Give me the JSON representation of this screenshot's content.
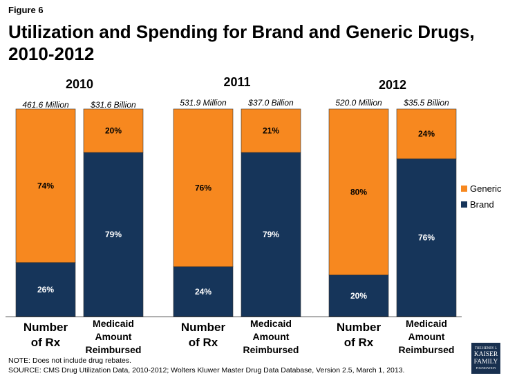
{
  "figure_label": "Figure 6",
  "title": "Utilization and Spending for Brand and Generic Drugs, 2010-2012",
  "colors": {
    "generic": "#f7881f",
    "brand": "#16355a",
    "axis": "#444444"
  },
  "legend": [
    {
      "label": "Generic",
      "color": "#f7881f"
    },
    {
      "label": "Brand",
      "color": "#16355a"
    }
  ],
  "chart_data": {
    "type": "bar",
    "stacked": true,
    "percent_scale": [
      0,
      100
    ],
    "title": "Utilization and Spending for Brand and Generic Drugs, 2010-2012",
    "groups": [
      {
        "year": "2010",
        "bars": [
          {
            "category": [
              "Number",
              "of Rx"
            ],
            "total": "461.6 Million",
            "generic": 74,
            "brand": 26
          },
          {
            "category": [
              "Medicaid",
              "Amount",
              "Reimbursed"
            ],
            "total": "$31.6 Billion",
            "generic": 20,
            "brand": 79
          }
        ]
      },
      {
        "year": "2011",
        "bars": [
          {
            "category": [
              "Number",
              "of Rx"
            ],
            "total": "531.9 Million",
            "generic": 76,
            "brand": 24
          },
          {
            "category": [
              "Medicaid",
              "Amount",
              "Reimbursed"
            ],
            "total": "$37.0 Billion",
            "generic": 21,
            "brand": 79
          }
        ]
      },
      {
        "year": "2012",
        "bars": [
          {
            "category": [
              "Number",
              "of Rx"
            ],
            "total": "520.0 Million",
            "generic": 80,
            "brand": 20
          },
          {
            "category": [
              "Medicaid",
              "Amount",
              "Reimbursed"
            ],
            "total": "$35.5 Billion",
            "generic": 24,
            "brand": 76
          }
        ]
      }
    ],
    "series": [
      {
        "name": "Generic",
        "key": "generic"
      },
      {
        "name": "Brand",
        "key": "brand"
      }
    ]
  },
  "notes": {
    "note": "NOTE: Does not include drug rebates.",
    "source": "SOURCE: CMS Drug Utilization Data, 2010-2012;  Wolters Kluwer Master Drug Data Database, Version 2.5, March 1, 2013."
  },
  "logo": {
    "line1": "THE HENRY J.",
    "line2": "KAISER",
    "line3": "FAMILY",
    "line4": "FOUNDATION"
  }
}
